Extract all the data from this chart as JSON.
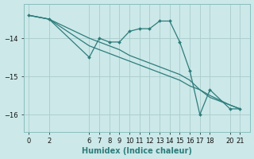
{
  "xlabel": "Humidex (Indice chaleur)",
  "bg_color": "#cce8e8",
  "grid_color": "#aacccc",
  "line_color": "#2e7c7c",
  "xlim": [
    -0.5,
    22.0
  ],
  "ylim": [
    -16.45,
    -13.1
  ],
  "yticks": [
    -16,
    -15,
    -14
  ],
  "xticks": [
    0,
    2,
    6,
    7,
    8,
    9,
    10,
    11,
    12,
    13,
    14,
    15,
    16,
    17,
    18,
    20,
    21
  ],
  "line_marker_x": [
    0,
    2,
    6,
    7,
    8,
    9,
    10,
    11,
    12,
    13,
    14,
    15,
    16,
    17,
    18,
    20,
    21
  ],
  "line_marker_y": [
    -13.4,
    -13.5,
    -14.5,
    -14.0,
    -14.1,
    -14.1,
    -13.82,
    -13.75,
    -13.75,
    -13.55,
    -13.55,
    -14.1,
    -14.85,
    -16.0,
    -15.35,
    -15.85,
    -15.85
  ],
  "line_diag1_x": [
    0,
    2,
    6,
    7,
    8,
    9,
    10,
    11,
    12,
    13,
    14,
    15,
    16,
    17,
    18,
    20,
    21
  ],
  "line_diag1_y": [
    -13.4,
    -13.5,
    -14.0,
    -14.1,
    -14.2,
    -14.3,
    -14.45,
    -14.55,
    -14.65,
    -14.75,
    -14.85,
    -14.95,
    -15.1,
    -15.35,
    -15.5,
    -15.75,
    -15.85
  ],
  "line_diag2_x": [
    0,
    2,
    6,
    7,
    8,
    9,
    10,
    11,
    12,
    13,
    14,
    15,
    16,
    17,
    18,
    20,
    21
  ],
  "line_diag2_y": [
    -13.4,
    -13.5,
    -14.2,
    -14.3,
    -14.4,
    -14.5,
    -14.6,
    -14.7,
    -14.8,
    -14.9,
    -15.0,
    -15.1,
    -15.25,
    -15.35,
    -15.55,
    -15.75,
    -15.85
  ]
}
